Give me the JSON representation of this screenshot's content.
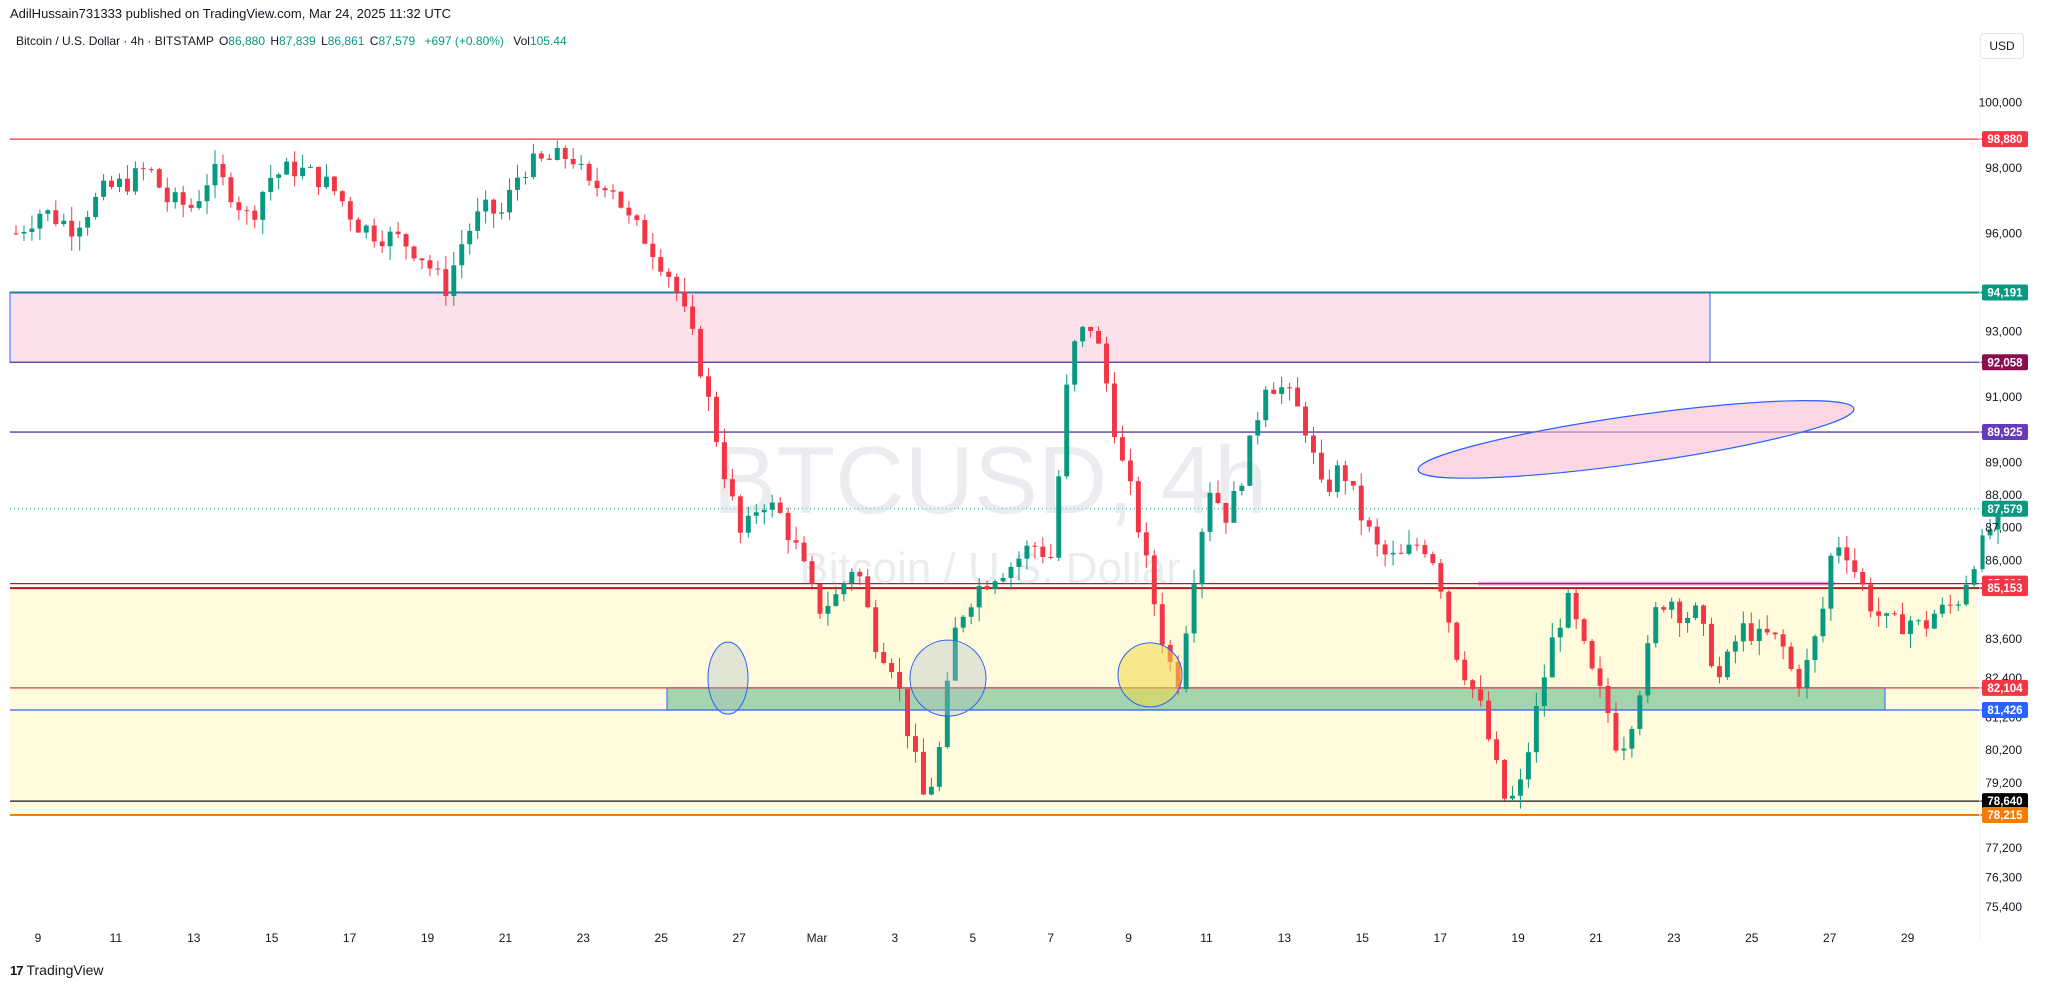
{
  "header": {
    "published_line": "AdilHussain731333 published on TradingView.com, Mar 24, 2025 11:32 UTC"
  },
  "symbol_bar": {
    "name": "Bitcoin / U.S. Dollar · 4h · BITSTAMP",
    "o_label": "O",
    "o_value": "86,880",
    "h_label": "H",
    "h_value": "87,839",
    "l_label": "L",
    "l_value": "86,861",
    "c_label": "C",
    "c_value": "87,579",
    "change": "+697 (+0.80%)",
    "vol_label": "Vol",
    "vol_value": "105.44"
  },
  "currency_button": "USD",
  "footer": {
    "logo_glyph": "17",
    "brand": "TradingView"
  },
  "watermark": {
    "ticker": "BTCUSD, 4h",
    "name": "Bitcoin / U.S. Dollar"
  },
  "colors": {
    "up": "#089981",
    "down": "#f23645",
    "accent": "#2962ff"
  },
  "chart_data": {
    "type": "candlestick",
    "ylim": [
      74700,
      101300
    ],
    "x_tick_labels": [
      "9",
      "11",
      "13",
      "15",
      "17",
      "19",
      "21",
      "23",
      "25",
      "27",
      "Mar",
      "3",
      "5",
      "7",
      "9",
      "11",
      "13",
      "15",
      "17",
      "19",
      "21",
      "23",
      "25",
      "27",
      "29"
    ],
    "y_tick_labels": [
      "100,000",
      "98,000",
      "96,000",
      "93,000",
      "91,000",
      "89,000",
      "88,000",
      "87,000",
      "86,000",
      "83,600",
      "82,400",
      "81,200",
      "80,200",
      "79,200",
      "77,200",
      "76,300",
      "75,400"
    ],
    "price_labels": [
      {
        "text": "98,880",
        "value": 98880,
        "color": "#f23645"
      },
      {
        "text": "94,191",
        "value": 94191,
        "color": "#089981"
      },
      {
        "text": "92,058",
        "value": 92058,
        "color": "#880e4f"
      },
      {
        "text": "89,925",
        "value": 89925,
        "color": "#673ab7"
      },
      {
        "text": "87,579",
        "value": 87579,
        "color": "#089981"
      },
      {
        "text": "85,291",
        "value": 85291,
        "color": "#f23645"
      },
      {
        "text": "85,153",
        "value": 85153,
        "color": "#f23645"
      },
      {
        "text": "82,104",
        "value": 82104,
        "color": "#f23645"
      },
      {
        "text": "81,426",
        "value": 81426,
        "color": "#2962ff"
      },
      {
        "text": "78,640",
        "value": 78640,
        "color": "#000000"
      },
      {
        "text": "78,215",
        "value": 78215,
        "color": "#f57c00"
      }
    ],
    "horizontal_lines": [
      {
        "value": 98880,
        "color": "#f23645"
      },
      {
        "value": 94191,
        "color": "#2a7aa0"
      },
      {
        "value": 92058,
        "color": "#5c3a9e"
      },
      {
        "value": 89925,
        "color": "#5c3a9e"
      },
      {
        "value": 85291,
        "color": "#b71c1c"
      },
      {
        "value": 85153,
        "color": "#b71c1c"
      },
      {
        "value": 82104,
        "color": "#f23645"
      },
      {
        "value": 81426,
        "color": "#2962ff"
      },
      {
        "value": 78640,
        "color": "#131722"
      },
      {
        "value": 78215,
        "color": "#f57c00"
      }
    ],
    "candle_count": 250,
    "last_close": 87579,
    "anchors": [
      [
        0,
        96000
      ],
      [
        4,
        96700
      ],
      [
        9,
        96200
      ],
      [
        14,
        97300
      ],
      [
        18,
        97600
      ],
      [
        21,
        98000
      ],
      [
        24,
        97000
      ],
      [
        28,
        96800
      ],
      [
        31,
        97900
      ],
      [
        34,
        97300
      ],
      [
        37,
        96400
      ],
      [
        40,
        97700
      ],
      [
        44,
        98000
      ],
      [
        48,
        97700
      ],
      [
        51,
        97200
      ],
      [
        54,
        96300
      ],
      [
        57,
        96000
      ],
      [
        61,
        95800
      ],
      [
        64,
        95400
      ],
      [
        68,
        94300
      ],
      [
        71,
        95900
      ],
      [
        74,
        96700
      ],
      [
        77,
        96600
      ],
      [
        80,
        98000
      ],
      [
        84,
        98200
      ],
      [
        88,
        98400
      ],
      [
        91,
        97300
      ],
      [
        94,
        97700
      ],
      [
        97,
        96400
      ],
      [
        100,
        95800
      ],
      [
        104,
        94600
      ],
      [
        108,
        92300
      ],
      [
        112,
        88900
      ],
      [
        115,
        86600
      ],
      [
        118,
        87900
      ],
      [
        121,
        87400
      ],
      [
        124,
        86200
      ],
      [
        127,
        84500
      ],
      [
        130,
        84900
      ],
      [
        133,
        86000
      ],
      [
        136,
        83600
      ],
      [
        139,
        82800
      ],
      [
        142,
        80200
      ],
      [
        144,
        78600
      ],
      [
        146,
        79800
      ],
      [
        149,
        84100
      ],
      [
        152,
        85100
      ],
      [
        155,
        85600
      ],
      [
        158,
        85900
      ],
      [
        161,
        86500
      ],
      [
        164,
        86100
      ],
      [
        167,
        92300
      ],
      [
        170,
        93300
      ],
      [
        172,
        92200
      ],
      [
        175,
        89100
      ],
      [
        177,
        87800
      ],
      [
        180,
        85000
      ],
      [
        182,
        83300
      ],
      [
        184,
        82200
      ],
      [
        186,
        84900
      ],
      [
        189,
        88300
      ],
      [
        192,
        87300
      ],
      [
        195,
        89100
      ],
      [
        198,
        91500
      ],
      [
        201,
        91200
      ],
      [
        204,
        90300
      ],
      [
        207,
        88000
      ],
      [
        210,
        88900
      ],
      [
        213,
        87400
      ],
      [
        216,
        86200
      ],
      [
        219,
        86000
      ],
      [
        222,
        86500
      ],
      [
        224,
        86400
      ],
      [
        226,
        85100
      ],
      [
        228,
        83300
      ],
      [
        230,
        82400
      ],
      [
        232,
        81500
      ],
      [
        234,
        80000
      ],
      [
        236,
        78600
      ],
      [
        238,
        78800
      ],
      [
        240,
        80600
      ],
      [
        242,
        82400
      ],
      [
        244,
        84000
      ],
      [
        246,
        84700
      ],
      [
        248,
        83500
      ],
      [
        250,
        82300
      ],
      [
        252,
        81500
      ],
      [
        254,
        80100
      ],
      [
        256,
        81200
      ],
      [
        258,
        82700
      ],
      [
        260,
        84600
      ],
      [
        262,
        84900
      ],
      [
        264,
        84300
      ],
      [
        266,
        84400
      ],
      [
        268,
        83400
      ],
      [
        270,
        82300
      ],
      [
        272,
        83400
      ],
      [
        274,
        84000
      ],
      [
        276,
        83600
      ],
      [
        278,
        83700
      ],
      [
        280,
        83300
      ],
      [
        282,
        82200
      ],
      [
        284,
        82900
      ],
      [
        286,
        84200
      ],
      [
        288,
        86700
      ],
      [
        290,
        86300
      ],
      [
        292,
        85400
      ],
      [
        294,
        84600
      ],
      [
        296,
        84100
      ],
      [
        298,
        84000
      ],
      [
        300,
        84200
      ],
      [
        302,
        83900
      ],
      [
        304,
        84400
      ],
      [
        306,
        84500
      ],
      [
        308,
        84900
      ],
      [
        310,
        86000
      ],
      [
        312,
        86600
      ],
      [
        314,
        87579
      ]
    ],
    "zones": [
      {
        "name": "resistance-zone",
        "from_value": 94191,
        "to_value": 92058,
        "color": "#f8bbd0"
      },
      {
        "name": "support-zone",
        "from_value": 85153,
        "to_value": 78215,
        "color": "#fff9c4"
      },
      {
        "name": "demand-zone",
        "from_value": 82104,
        "to_value": 81426,
        "color": "#66bb8a"
      }
    ]
  }
}
